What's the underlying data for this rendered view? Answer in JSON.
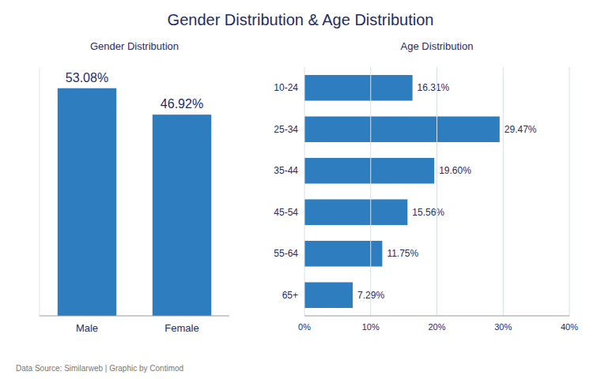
{
  "title": "Gender Distribution & Age Distribution",
  "annotations": [
    "Data Source: Similarweb | Graphic by Contimod"
  ],
  "chart_data": [
    {
      "type": "bar",
      "title": "Gender Distribution",
      "categories": [
        "Male",
        "Female"
      ],
      "values": [
        53.08,
        46.92
      ],
      "value_labels": [
        "53.08%",
        "46.92%"
      ],
      "color": "#2e7ebf",
      "ylim": [
        0,
        58
      ],
      "yticks": [],
      "grid": false,
      "data_labels": true,
      "tick_labels": "x"
    },
    {
      "type": "bar",
      "title": "Age Distribution",
      "orientation": "horizontal",
      "categories": [
        "10-24",
        "25-34",
        "35-44",
        "45-54",
        "55-64",
        "65+"
      ],
      "values": [
        16.31,
        29.47,
        19.6,
        15.56,
        11.75,
        7.29
      ],
      "value_labels": [
        "16.31%",
        "29.47%",
        "19.60%",
        "15.56%",
        "11.75%",
        "7.29%"
      ],
      "color": "#2e7ebf",
      "xlim": [
        0,
        40
      ],
      "xticks": [
        {
          "value": 0,
          "label": "0%"
        },
        {
          "value": 10,
          "label": "10%"
        },
        {
          "value": 20,
          "label": "20%"
        },
        {
          "value": 30,
          "label": "30%"
        },
        {
          "value": 40,
          "label": "40%"
        }
      ],
      "grid": true,
      "data_labels": true
    }
  ]
}
